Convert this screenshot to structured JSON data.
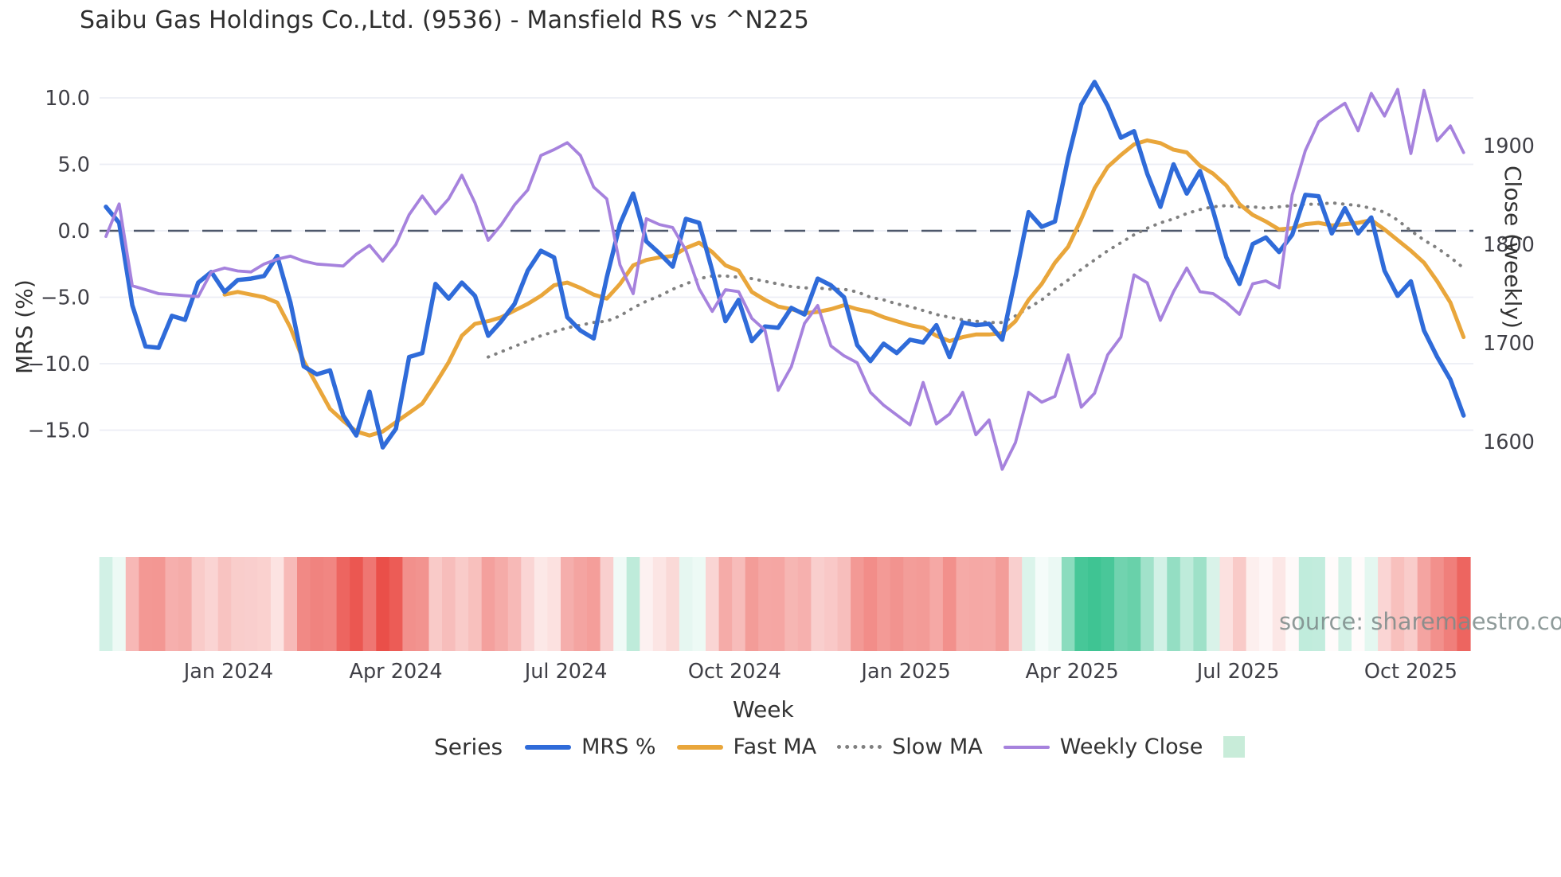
{
  "header": {
    "title": "Saibu Gas Holdings Co.,Ltd. (9536) - Mansfield RS vs ^N225"
  },
  "watermark": "source: sharemaestro.com",
  "legend": {
    "title": "Series",
    "items": [
      {
        "label": "MRS %",
        "color": "#2f6bd9",
        "style": "line"
      },
      {
        "label": "Fast MA",
        "color": "#e9a63b",
        "style": "line"
      },
      {
        "label": "Slow MA",
        "color": "#808080",
        "style": "dotted"
      },
      {
        "label": "Weekly Close",
        "color": "#a682dd",
        "style": "thin-line"
      }
    ],
    "heatmap_swatch_color": "#c8ecd9"
  },
  "chart_data": {
    "type": "line",
    "title": "Saibu Gas Holdings Co.,Ltd. (9536) - Mansfield RS vs ^N225",
    "xlabel": "Week",
    "ylabel_left": "MRS (%)",
    "ylabel_right": "Close (weekly)",
    "grid": true,
    "legend_position": "bottom",
    "x_ticks": {
      "labels": [
        "Jan 2024",
        "Apr 2024",
        "Jul 2024",
        "Oct 2024",
        "Jan 2025",
        "Apr 2025",
        "Jul 2025",
        "Oct 2025"
      ],
      "week_positions": [
        9.3,
        22.0,
        34.9,
        47.7,
        60.7,
        73.3,
        85.9,
        99.0
      ]
    },
    "y_left": {
      "tick_labels": [
        "10.0",
        "5.0",
        "0.0",
        "−5.0",
        "−10.0",
        "−15.0"
      ],
      "tick_values": [
        10,
        5,
        0,
        -5,
        -10,
        -15
      ],
      "range": [
        -18.5,
        12.5
      ]
    },
    "y_right": {
      "tick_labels": [
        "1900",
        "1800",
        "1700",
        "1600"
      ],
      "tick_values": [
        1900,
        1800,
        1700,
        1600
      ]
    },
    "zero_reference_line": 0,
    "series": [
      {
        "name": "MRS %",
        "axis": "left",
        "color": "#2f6bd9",
        "width": 5.5,
        "dash": "solid",
        "values": [
          1.8,
          0.6,
          -5.6,
          -8.7,
          -8.8,
          -6.4,
          -6.7,
          -3.9,
          -3.1,
          -4.6,
          -3.7,
          -3.6,
          -3.4,
          -1.9,
          -5.4,
          -10.2,
          -10.8,
          -10.5,
          -13.9,
          -15.4,
          -12.1,
          -16.3,
          -14.9,
          -9.5,
          -9.2,
          -4.0,
          -5.1,
          -3.9,
          -4.9,
          -7.9,
          -6.8,
          -5.5,
          -3.0,
          -1.5,
          -2.0,
          -6.5,
          -7.5,
          -8.1,
          -3.5,
          0.5,
          2.8,
          -0.8,
          -1.7,
          -2.7,
          0.9,
          0.6,
          -3.0,
          -6.8,
          -5.2,
          -8.3,
          -7.2,
          -7.3,
          -5.8,
          -6.3,
          -3.6,
          -4.1,
          -5.0,
          -8.6,
          -9.8,
          -8.5,
          -9.2,
          -8.2,
          -8.4,
          -7.1,
          -9.5,
          -6.9,
          -7.1,
          -7.0,
          -8.2,
          -3.5,
          1.4,
          0.3,
          0.7,
          5.5,
          9.5,
          11.2,
          9.4,
          7.0,
          7.5,
          4.3,
          1.8,
          5.0,
          2.8,
          4.5,
          1.5,
          -2.0,
          -4.0,
          -1.0,
          -0.5,
          -1.6,
          -0.3,
          2.7,
          2.6,
          -0.2,
          1.7,
          -0.2,
          1.0,
          -3.0,
          -4.9,
          -3.8,
          -7.5,
          -9.5,
          -11.2,
          -13.9
        ]
      },
      {
        "name": "Fast MA",
        "axis": "left",
        "color": "#e9a63b",
        "width": 5,
        "dash": "solid",
        "values": [
          null,
          null,
          null,
          null,
          null,
          null,
          null,
          null,
          null,
          -4.8,
          -4.6,
          -4.8,
          -5.0,
          -5.4,
          -7.3,
          -9.8,
          -11.6,
          -13.4,
          -14.3,
          -15.1,
          -15.4,
          -15.1,
          -14.4,
          -13.7,
          -13.0,
          -11.5,
          -9.9,
          -7.9,
          -7.0,
          -6.8,
          -6.5,
          -6.0,
          -5.5,
          -4.9,
          -4.1,
          -3.9,
          -4.3,
          -4.8,
          -5.1,
          -4.0,
          -2.6,
          -2.2,
          -2.0,
          -1.9,
          -1.3,
          -0.9,
          -1.6,
          -2.6,
          -3.0,
          -4.6,
          -5.2,
          -5.7,
          -5.9,
          -6.2,
          -6.1,
          -5.9,
          -5.6,
          -5.9,
          -6.1,
          -6.5,
          -6.8,
          -7.1,
          -7.3,
          -7.9,
          -8.3,
          -8.0,
          -7.8,
          -7.8,
          -7.7,
          -6.8,
          -5.2,
          -4.0,
          -2.4,
          -1.2,
          0.9,
          3.2,
          4.8,
          5.7,
          6.5,
          6.8,
          6.6,
          6.1,
          5.9,
          4.9,
          4.3,
          3.4,
          2.0,
          1.2,
          0.7,
          0.1,
          0.2,
          0.5,
          0.6,
          0.4,
          0.5,
          0.6,
          0.8,
          0.1,
          -0.7,
          -1.5,
          -2.4,
          -3.8,
          -5.4,
          -8.0
        ]
      },
      {
        "name": "Slow MA",
        "axis": "left",
        "color": "#808080",
        "width": 4,
        "dash": "dotted",
        "values": [
          null,
          null,
          null,
          null,
          null,
          null,
          null,
          null,
          null,
          null,
          null,
          null,
          null,
          null,
          null,
          null,
          null,
          null,
          null,
          null,
          null,
          null,
          null,
          null,
          null,
          null,
          null,
          null,
          null,
          -9.5,
          -9.1,
          -8.7,
          -8.3,
          -7.9,
          -7.6,
          -7.3,
          -7.1,
          -6.9,
          -6.8,
          -6.4,
          -5.8,
          -5.3,
          -4.9,
          -4.4,
          -4.0,
          -3.6,
          -3.4,
          -3.4,
          -3.5,
          -3.6,
          -3.8,
          -4.0,
          -4.2,
          -4.3,
          -4.3,
          -4.4,
          -4.4,
          -4.6,
          -5.0,
          -5.2,
          -5.5,
          -5.7,
          -6.0,
          -6.3,
          -6.5,
          -6.7,
          -6.8,
          -6.9,
          -6.9,
          -6.4,
          -5.8,
          -5.2,
          -4.4,
          -3.7,
          -2.9,
          -2.2,
          -1.5,
          -0.9,
          -0.3,
          0.2,
          0.6,
          0.9,
          1.3,
          1.6,
          1.8,
          1.9,
          1.8,
          1.8,
          1.7,
          1.8,
          1.9,
          2.0,
          2.0,
          2.1,
          2.0,
          1.9,
          1.7,
          1.4,
          0.8,
          0.0,
          -0.7,
          -1.3,
          -2.0,
          -2.8
        ]
      },
      {
        "name": "Weekly Close",
        "axis": "right",
        "color": "#a682dd",
        "width": 3.8,
        "dash": "solid",
        "values": [
          1808,
          1841,
          1758,
          1754,
          1750,
          1749,
          1748,
          1747,
          1772,
          1776,
          1773,
          1772,
          1780,
          1785,
          1788,
          1783,
          1780,
          1779,
          1778,
          1790,
          1799,
          1783,
          1800,
          1830,
          1849,
          1831,
          1846,
          1870,
          1842,
          1804,
          1820,
          1840,
          1855,
          1890,
          1896,
          1903,
          1890,
          1858,
          1846,
          1779,
          1750,
          1826,
          1820,
          1817,
          1794,
          1755,
          1732,
          1754,
          1752,
          1725,
          1713,
          1652,
          1676,
          1720,
          1738,
          1697,
          1687,
          1680,
          1650,
          1637,
          1627,
          1617,
          1660,
          1618,
          1628,
          1650,
          1607,
          1622,
          1572,
          1599,
          1650,
          1640,
          1646,
          1688,
          1635,
          1649,
          1688,
          1706,
          1769,
          1761,
          1723,
          1752,
          1776,
          1752,
          1750,
          1741,
          1729,
          1760,
          1763,
          1756,
          1850,
          1895,
          1924,
          1934,
          1943,
          1915,
          1953,
          1930,
          1957,
          1892,
          1956,
          1905,
          1920,
          1893
        ]
      }
    ],
    "heatmap": {
      "basis_series": "MRS %",
      "positive_color": "#3fc493",
      "negative_color": "#ea4d47",
      "positive_full_scale": 10,
      "negative_full_scale": 16.5
    }
  }
}
